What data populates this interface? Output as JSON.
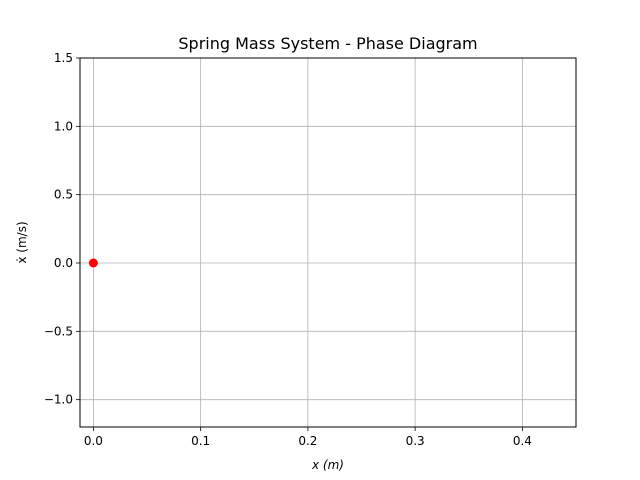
{
  "chart_data": {
    "type": "scatter",
    "title": "Spring Mass System - Phase Diagram",
    "xlabel": "x (m)",
    "ylabel": "ẋ (m/s)",
    "xlim": [
      -0.0125,
      0.45
    ],
    "ylim": [
      -1.2,
      1.5
    ],
    "xticks": [
      0.0,
      0.1,
      0.2,
      0.3,
      0.4
    ],
    "xtick_labels": [
      "0.0",
      "0.1",
      "0.2",
      "0.3",
      "0.4"
    ],
    "yticks": [
      -1.0,
      -0.5,
      0.0,
      0.5,
      1.0,
      1.5
    ],
    "ytick_labels": [
      "−1.0",
      "−0.5",
      "0.0",
      "0.5",
      "1.0",
      "1.5"
    ],
    "grid": true,
    "series": [
      {
        "x": [
          0.0
        ],
        "y": [
          0.0
        ],
        "color": "#ff0000",
        "marker": "circle"
      }
    ]
  }
}
